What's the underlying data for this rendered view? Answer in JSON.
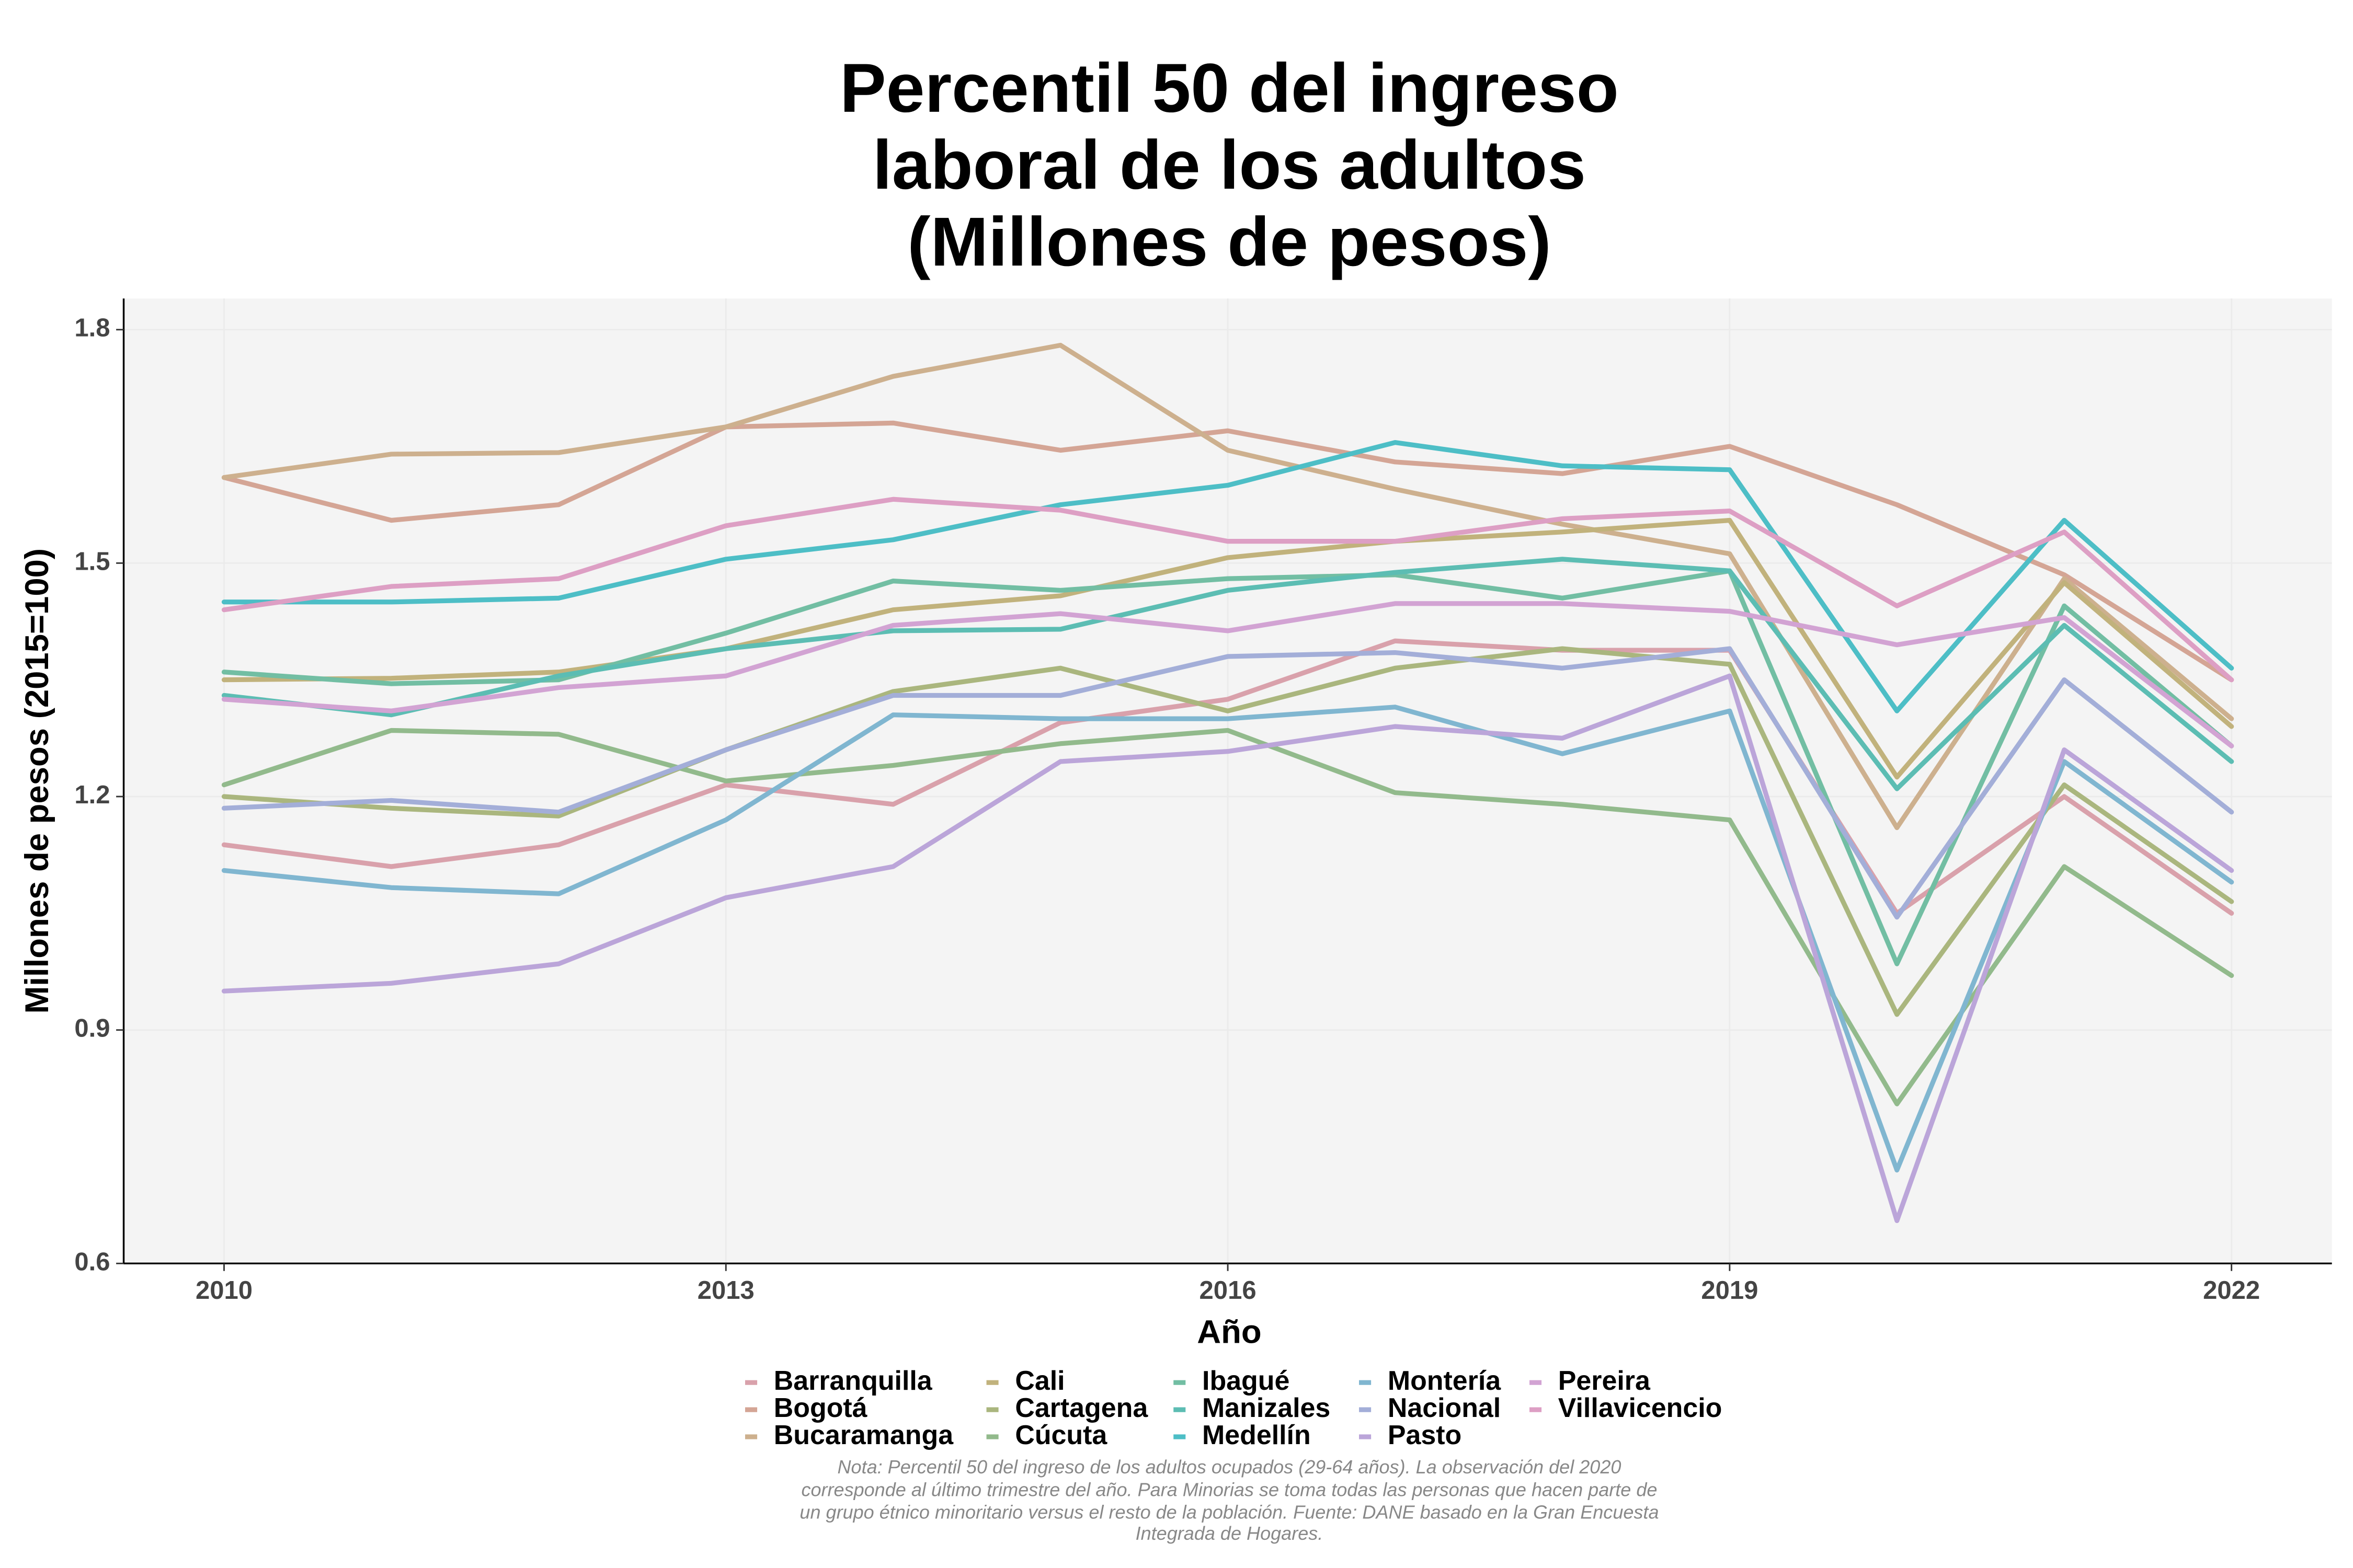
{
  "chart_data": {
    "type": "line",
    "title": [
      "Percentil 50 del ingreso",
      "laboral de los adultos",
      "(Millones de pesos)"
    ],
    "x_label": "Año",
    "y_label": "Millones de pesos (2015=100)",
    "note": [
      "Nota: Percentil 50 del ingreso de los adultos ocupados (29-64 años). La observación del 2020",
      "corresponde al último trimestre del año. Para Minorias se toma todas las personas que hacen parte de",
      "un grupo étnico minoritario versus el resto de la población. Fuente: DANE basado en la Gran Encuesta",
      "Integrada de Hogares."
    ],
    "x": [
      2010,
      2011,
      2012,
      2013,
      2014,
      2015,
      2016,
      2017,
      2018,
      2019,
      2020,
      2021,
      2022
    ],
    "xlim": [
      2009.4,
      2022.6
    ],
    "xticks": [
      2010,
      2013,
      2016,
      2019,
      2022
    ],
    "ylim": [
      0.6,
      1.84
    ],
    "yticks": [
      0.6,
      0.9,
      1.2,
      1.5,
      1.8
    ],
    "grid": true,
    "legend_position": "bottom",
    "series": [
      {
        "name": "Barranquilla",
        "color": "#d9a1ab",
        "values": [
          1.138,
          1.11,
          1.138,
          1.215,
          1.19,
          1.295,
          1.325,
          1.4,
          1.388,
          1.388,
          1.05,
          1.2,
          1.05
        ]
      },
      {
        "name": "Bogotá",
        "color": "#d4a595",
        "values": [
          1.61,
          1.555,
          1.575,
          1.675,
          1.68,
          1.645,
          1.67,
          1.63,
          1.615,
          1.65,
          1.575,
          1.485,
          1.35
        ]
      },
      {
        "name": "Bucaramanga",
        "color": "#cdb08e",
        "values": [
          1.61,
          1.64,
          1.642,
          1.675,
          1.74,
          1.78,
          1.645,
          1.595,
          1.55,
          1.512,
          1.16,
          1.48,
          1.3
        ]
      },
      {
        "name": "Cali",
        "color": "#c1b27c",
        "values": [
          1.35,
          1.352,
          1.36,
          1.39,
          1.44,
          1.458,
          1.507,
          1.528,
          1.54,
          1.555,
          1.225,
          1.475,
          1.29
        ]
      },
      {
        "name": "Cartagena",
        "color": "#aab67e",
        "values": [
          1.2,
          1.185,
          1.175,
          1.26,
          1.335,
          1.365,
          1.31,
          1.365,
          1.39,
          1.37,
          0.92,
          1.215,
          1.065
        ]
      },
      {
        "name": "Cúcuta",
        "color": "#92ba8c",
        "values": [
          1.215,
          1.285,
          1.28,
          1.22,
          1.24,
          1.268,
          1.285,
          1.205,
          1.19,
          1.17,
          0.805,
          1.11,
          0.97
        ]
      },
      {
        "name": "Ibagué",
        "color": "#72bea3",
        "values": [
          1.36,
          1.345,
          1.35,
          1.41,
          1.477,
          1.465,
          1.48,
          1.485,
          1.455,
          1.49,
          0.985,
          1.445,
          1.265
        ]
      },
      {
        "name": "Manizales",
        "color": "#5cbdb3",
        "values": [
          1.33,
          1.305,
          1.355,
          1.39,
          1.413,
          1.415,
          1.465,
          1.488,
          1.505,
          1.49,
          1.21,
          1.42,
          1.245
        ]
      },
      {
        "name": "Medellín",
        "color": "#4dbec6",
        "values": [
          1.45,
          1.45,
          1.455,
          1.505,
          1.53,
          1.575,
          1.6,
          1.655,
          1.625,
          1.62,
          1.31,
          1.555,
          1.365
        ]
      },
      {
        "name": "Montería",
        "color": "#80b6d0",
        "values": [
          1.105,
          1.083,
          1.075,
          1.17,
          1.305,
          1.3,
          1.3,
          1.315,
          1.255,
          1.31,
          0.72,
          1.245,
          1.09
        ]
      },
      {
        "name": "Nacional",
        "color": "#a3aed8",
        "values": [
          1.185,
          1.195,
          1.18,
          1.26,
          1.33,
          1.33,
          1.38,
          1.385,
          1.365,
          1.39,
          1.045,
          1.35,
          1.18
        ]
      },
      {
        "name": "Pasto",
        "color": "#bba5d9",
        "values": [
          0.95,
          0.96,
          0.985,
          1.07,
          1.11,
          1.245,
          1.258,
          1.29,
          1.275,
          1.355,
          0.655,
          1.26,
          1.105
        ]
      },
      {
        "name": "Pereira",
        "color": "#d2a3d3",
        "values": [
          1.325,
          1.31,
          1.34,
          1.355,
          1.42,
          1.435,
          1.413,
          1.448,
          1.448,
          1.438,
          1.395,
          1.43,
          1.265
        ]
      },
      {
        "name": "Villavicencio",
        "color": "#dd9fc4",
        "values": [
          1.44,
          1.47,
          1.48,
          1.548,
          1.582,
          1.568,
          1.528,
          1.528,
          1.557,
          1.567,
          1.445,
          1.54,
          1.35
        ]
      }
    ]
  }
}
